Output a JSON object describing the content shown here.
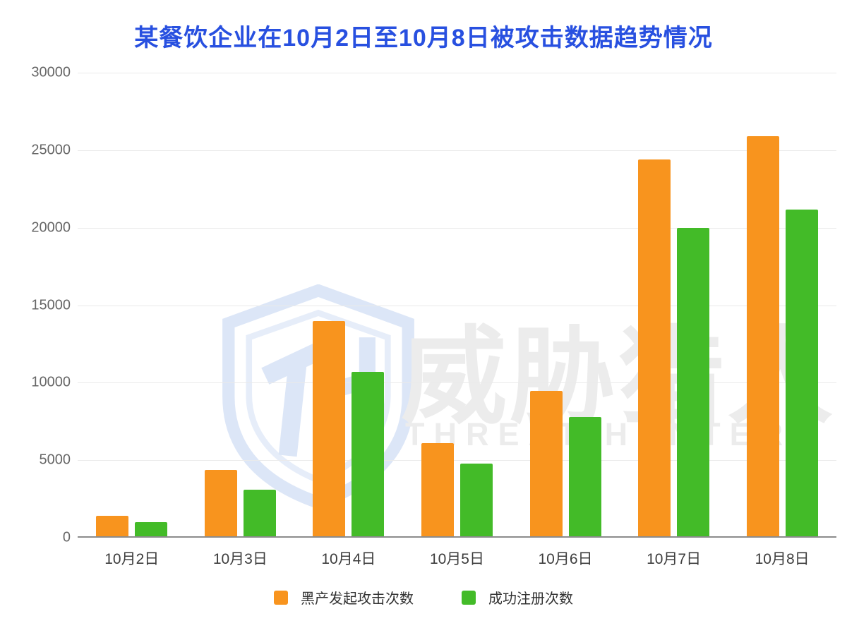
{
  "title": "某餐饮企业在10月2日至10月8日被攻击数据趋势情况",
  "colors": {
    "title": "#2850E0",
    "attack": "#F8941E",
    "register": "#43BB28",
    "gridline": "#EAEAEA",
    "baseline": "#8C8C8C",
    "watermark_text": "#ECECEC",
    "watermark_shield": "#DCE6F7"
  },
  "watermark": {
    "logo": "threat-hunter-shield-logo",
    "cn": "威胁猎人",
    "en": "THREAT HUNTER"
  },
  "legend": {
    "attack_label": "黑产发起攻击次数",
    "register_label": "成功注册次数"
  },
  "chart_data": {
    "type": "bar",
    "title": "某餐饮企业在10月2日至10月8日被攻击数据趋势情况",
    "categories": [
      "10月2日",
      "10月3日",
      "10月4日",
      "10月5日",
      "10月6日",
      "10月7日",
      "10月8日"
    ],
    "series": [
      {
        "name": "黑产发起攻击次数",
        "color": "#F8941E",
        "values": [
          1300,
          4300,
          13900,
          6000,
          9400,
          24300,
          25800
        ]
      },
      {
        "name": "成功注册次数",
        "color": "#43BB28",
        "values": [
          900,
          3000,
          10600,
          4700,
          7700,
          19900,
          21100
        ]
      }
    ],
    "xlabel": "",
    "ylabel": "",
    "ylim": [
      0,
      30000
    ],
    "yticks": [
      0,
      5000,
      10000,
      15000,
      20000,
      25000,
      30000
    ],
    "grid": true,
    "legend_position": "bottom"
  }
}
